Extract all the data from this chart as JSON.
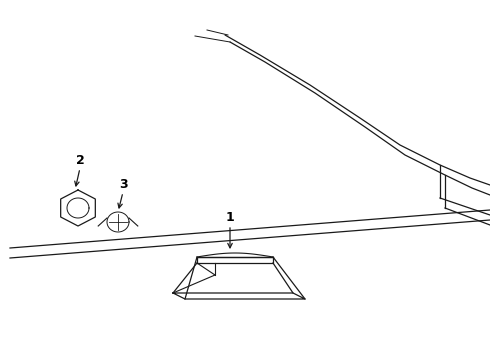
{
  "bg_color": "#ffffff",
  "line_color": "#1a1a1a",
  "figure_width": 4.9,
  "figure_height": 3.6,
  "dpi": 100
}
